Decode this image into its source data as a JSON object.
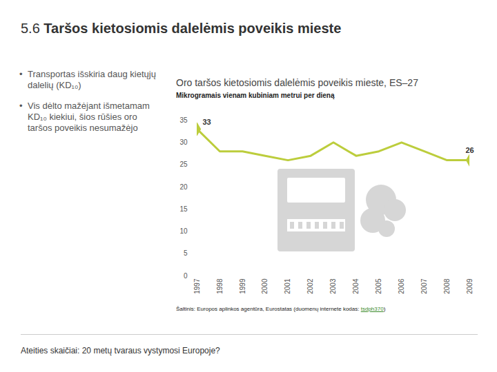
{
  "slide": {
    "number": "5.6",
    "title": "Taršos kietosiomis dalelėmis poveikis mieste",
    "bullets": [
      "Transportas išskiria daug kietųjų dalelių (KD₁₀)",
      "Vis dėlto mažėjant išmetamam KD₁₀ kiekiui, šios rūšies oro taršos poveikis nesumažėjo"
    ],
    "footer": "Ateities skaičiai: 20 metų tvaraus vystymosi Europoje?"
  },
  "chart_data": {
    "type": "line",
    "title": "Oro taršos kietosiomis dalelėmis poveikis mieste, ES–27",
    "subtitle": "Mikrogramais vienam kubiniam metrui per dieną",
    "source": {
      "text": "Šaltinis: Europos aplinkos agentūra, Eurostatas (duomenų internete kodas: ",
      "link": "tsdph370",
      "after": ")"
    },
    "x": [
      1997,
      1998,
      1999,
      2000,
      2001,
      2002,
      2003,
      2004,
      2005,
      2006,
      2007,
      2008,
      2009
    ],
    "values": [
      33,
      28,
      28,
      27,
      26,
      27,
      30,
      27,
      28,
      30,
      28,
      26,
      26
    ],
    "value_labels": [
      "33",
      null,
      null,
      null,
      null,
      null,
      null,
      null,
      null,
      null,
      null,
      null,
      "26"
    ],
    "color": "#bccd3c",
    "marker": "diamond",
    "xlim": [
      1997,
      2009
    ],
    "xticks": [
      1997,
      1998,
      1999,
      2000,
      2001,
      2002,
      2003,
      2004,
      2005,
      2006,
      2007,
      2008,
      2009
    ],
    "ylim": [
      0,
      35
    ],
    "yticks": [
      0,
      5,
      10,
      15,
      20,
      25,
      30,
      35
    ],
    "grid": false
  }
}
